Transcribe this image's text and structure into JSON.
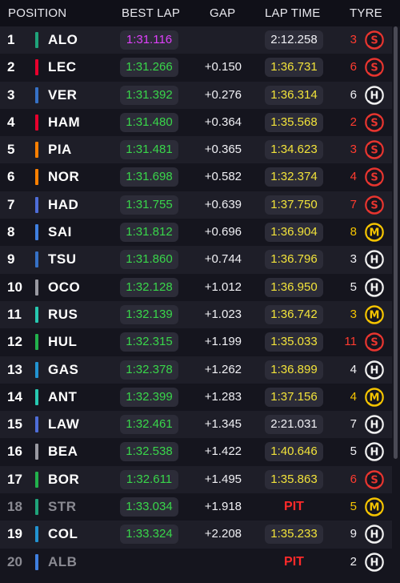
{
  "header": {
    "position": "POSITION",
    "best_lap": "BEST LAP",
    "gap": "GAP",
    "lap_time": "LAP TIME",
    "tyre": "TYRE"
  },
  "colors": {
    "purple": "#e040fb",
    "green": "#39d64a",
    "yellow": "#f2e33a",
    "white": "#f0f0f4",
    "pit_red": "#ff2a2a",
    "laps_red": "#ff3b2f",
    "laps_yellow": "#f5c400",
    "soft": "#e8352f",
    "medium": "#f5c400",
    "hard": "#f0f0f0"
  },
  "rows": [
    {
      "pos": "1",
      "driver": "ALO",
      "team_color": "#1fa37a",
      "best": "1:31.116",
      "best_color": "purple",
      "gap": "",
      "lap": "2:12.258",
      "lap_color": "white",
      "laps": "3",
      "laps_color": "red",
      "tyre": "S",
      "tyre_color": "soft",
      "retired": false
    },
    {
      "pos": "2",
      "driver": "LEC",
      "team_color": "#e8002d",
      "best": "1:31.266",
      "best_color": "green",
      "gap": "+0.150",
      "lap": "1:36.731",
      "lap_color": "yellow",
      "laps": "6",
      "laps_color": "red",
      "tyre": "S",
      "tyre_color": "soft",
      "retired": false
    },
    {
      "pos": "3",
      "driver": "VER",
      "team_color": "#3671c6",
      "best": "1:31.392",
      "best_color": "green",
      "gap": "+0.276",
      "lap": "1:36.314",
      "lap_color": "yellow",
      "laps": "6",
      "laps_color": "white",
      "tyre": "H",
      "tyre_color": "hard",
      "retired": false
    },
    {
      "pos": "4",
      "driver": "HAM",
      "team_color": "#e8002d",
      "best": "1:31.480",
      "best_color": "green",
      "gap": "+0.364",
      "lap": "1:35.568",
      "lap_color": "yellow",
      "laps": "2",
      "laps_color": "red",
      "tyre": "S",
      "tyre_color": "soft",
      "retired": false
    },
    {
      "pos": "5",
      "driver": "PIA",
      "team_color": "#ff8000",
      "best": "1:31.481",
      "best_color": "green",
      "gap": "+0.365",
      "lap": "1:34.623",
      "lap_color": "yellow",
      "laps": "3",
      "laps_color": "red",
      "tyre": "S",
      "tyre_color": "soft",
      "retired": false
    },
    {
      "pos": "6",
      "driver": "NOR",
      "team_color": "#ff8000",
      "best": "1:31.698",
      "best_color": "green",
      "gap": "+0.582",
      "lap": "1:32.374",
      "lap_color": "yellow",
      "laps": "4",
      "laps_color": "red",
      "tyre": "S",
      "tyre_color": "soft",
      "retired": false
    },
    {
      "pos": "7",
      "driver": "HAD",
      "team_color": "#4e6dd8",
      "best": "1:31.755",
      "best_color": "green",
      "gap": "+0.639",
      "lap": "1:37.750",
      "lap_color": "yellow",
      "laps": "7",
      "laps_color": "red",
      "tyre": "S",
      "tyre_color": "soft",
      "retired": false
    },
    {
      "pos": "8",
      "driver": "SAI",
      "team_color": "#3f7fe0",
      "best": "1:31.812",
      "best_color": "green",
      "gap": "+0.696",
      "lap": "1:36.904",
      "lap_color": "yellow",
      "laps": "8",
      "laps_color": "yellow",
      "tyre": "M",
      "tyre_color": "medium",
      "retired": false
    },
    {
      "pos": "9",
      "driver": "TSU",
      "team_color": "#3671c6",
      "best": "1:31.860",
      "best_color": "green",
      "gap": "+0.744",
      "lap": "1:36.796",
      "lap_color": "yellow",
      "laps": "3",
      "laps_color": "white",
      "tyre": "H",
      "tyre_color": "hard",
      "retired": false
    },
    {
      "pos": "10",
      "driver": "OCO",
      "team_color": "#9a9aa2",
      "best": "1:32.128",
      "best_color": "green",
      "gap": "+1.012",
      "lap": "1:36.950",
      "lap_color": "yellow",
      "laps": "5",
      "laps_color": "white",
      "tyre": "H",
      "tyre_color": "hard",
      "retired": false
    },
    {
      "pos": "11",
      "driver": "RUS",
      "team_color": "#27c8b0",
      "best": "1:32.139",
      "best_color": "green",
      "gap": "+1.023",
      "lap": "1:36.742",
      "lap_color": "yellow",
      "laps": "3",
      "laps_color": "yellow",
      "tyre": "M",
      "tyre_color": "medium",
      "retired": false
    },
    {
      "pos": "12",
      "driver": "HUL",
      "team_color": "#22b14c",
      "best": "1:32.315",
      "best_color": "green",
      "gap": "+1.199",
      "lap": "1:35.033",
      "lap_color": "yellow",
      "laps": "11",
      "laps_color": "red",
      "tyre": "S",
      "tyre_color": "soft",
      "retired": false
    },
    {
      "pos": "13",
      "driver": "GAS",
      "team_color": "#2293d1",
      "best": "1:32.378",
      "best_color": "green",
      "gap": "+1.262",
      "lap": "1:36.899",
      "lap_color": "yellow",
      "laps": "4",
      "laps_color": "white",
      "tyre": "H",
      "tyre_color": "hard",
      "retired": false
    },
    {
      "pos": "14",
      "driver": "ANT",
      "team_color": "#27c8b0",
      "best": "1:32.399",
      "best_color": "green",
      "gap": "+1.283",
      "lap": "1:37.156",
      "lap_color": "yellow",
      "laps": "4",
      "laps_color": "yellow",
      "tyre": "M",
      "tyre_color": "medium",
      "retired": false
    },
    {
      "pos": "15",
      "driver": "LAW",
      "team_color": "#4e6dd8",
      "best": "1:32.461",
      "best_color": "green",
      "gap": "+1.345",
      "lap": "2:21.031",
      "lap_color": "white",
      "laps": "7",
      "laps_color": "white",
      "tyre": "H",
      "tyre_color": "hard",
      "retired": false
    },
    {
      "pos": "16",
      "driver": "BEA",
      "team_color": "#9a9aa2",
      "best": "1:32.538",
      "best_color": "green",
      "gap": "+1.422",
      "lap": "1:40.646",
      "lap_color": "yellow",
      "laps": "5",
      "laps_color": "white",
      "tyre": "H",
      "tyre_color": "hard",
      "retired": false
    },
    {
      "pos": "17",
      "driver": "BOR",
      "team_color": "#22b14c",
      "best": "1:32.611",
      "best_color": "green",
      "gap": "+1.495",
      "lap": "1:35.863",
      "lap_color": "yellow",
      "laps": "6",
      "laps_color": "red",
      "tyre": "S",
      "tyre_color": "soft",
      "retired": false
    },
    {
      "pos": "18",
      "driver": "STR",
      "team_color": "#1fa37a",
      "best": "1:33.034",
      "best_color": "green",
      "gap": "+1.918",
      "lap": "PIT",
      "lap_color": "pit",
      "laps": "5",
      "laps_color": "yellow",
      "tyre": "M",
      "tyre_color": "medium",
      "retired": true
    },
    {
      "pos": "19",
      "driver": "COL",
      "team_color": "#2293d1",
      "best": "1:33.324",
      "best_color": "green",
      "gap": "+2.208",
      "lap": "1:35.233",
      "lap_color": "yellow",
      "laps": "9",
      "laps_color": "white",
      "tyre": "H",
      "tyre_color": "hard",
      "retired": false
    },
    {
      "pos": "20",
      "driver": "ALB",
      "team_color": "#3f7fe0",
      "best": "",
      "best_color": "green",
      "gap": "",
      "lap": "PIT",
      "lap_color": "pit",
      "laps": "2",
      "laps_color": "white",
      "tyre": "H",
      "tyre_color": "hard",
      "retired": true
    }
  ]
}
